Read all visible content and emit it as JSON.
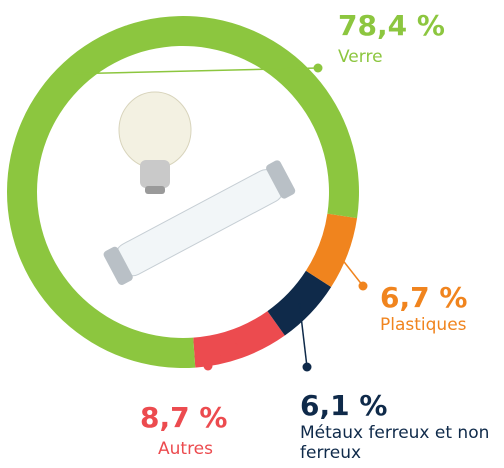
{
  "chart_data": {
    "type": "pie",
    "categories": [
      "Verre",
      "Plastiques",
      "Métaux ferreux et non ferreux",
      "Autres"
    ],
    "values": [
      78.4,
      6.7,
      6.1,
      8.7
    ],
    "value_labels": [
      "78,4 %",
      "6,7 %",
      "6,1 %",
      "8,7 %"
    ],
    "colors": [
      "#8cc63f",
      "#f0841e",
      "#0f2a4a",
      "#ec4b4f"
    ]
  }
}
